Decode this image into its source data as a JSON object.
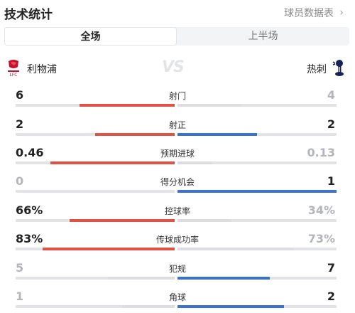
{
  "header": {
    "title": "技术统计",
    "player_stats_link": "球员数据表",
    "chevron_icon": "chevron-right-icon"
  },
  "tabs": [
    {
      "label": "全场",
      "active": true
    },
    {
      "label": "上半场",
      "active": false
    }
  ],
  "teams": {
    "home": {
      "name": "利物浦",
      "crest_icon": "liverpool-crest-icon",
      "color": "#c8102e"
    },
    "vs": "VS",
    "away": {
      "name": "热刺",
      "crest_icon": "tottenham-crest-icon",
      "color": "#132257"
    }
  },
  "colors": {
    "home_bar": "#e05243",
    "away_bar": "#3a72d1",
    "inactive_bar": "#dcdde1",
    "track": "#e2e3e6"
  },
  "stats": [
    {
      "label": "射门",
      "home": "6",
      "away": "4",
      "home_frac": 0.6,
      "away_frac": 0.4,
      "leader": "home"
    },
    {
      "label": "射正",
      "home": "2",
      "away": "2",
      "home_frac": 0.5,
      "away_frac": 0.5,
      "leader": "both"
    },
    {
      "label": "预期进球",
      "home": "0.46",
      "away": "0.13",
      "home_frac": 0.78,
      "away_frac": 0.22,
      "leader": "home"
    },
    {
      "label": "得分机会",
      "home": "0",
      "away": "1",
      "home_frac": 0.0,
      "away_frac": 1.0,
      "leader": "away"
    },
    {
      "label": "控球率",
      "home": "66%",
      "away": "34%",
      "home_frac": 0.66,
      "away_frac": 0.34,
      "leader": "home"
    },
    {
      "label": "传球成功率",
      "home": "83%",
      "away": "73%",
      "home_frac": 0.83,
      "away_frac": 0.73,
      "leader": "home"
    },
    {
      "label": "犯规",
      "home": "5",
      "away": "7",
      "home_frac": 0.42,
      "away_frac": 0.58,
      "leader": "away"
    },
    {
      "label": "角球",
      "home": "1",
      "away": "2",
      "home_frac": 0.33,
      "away_frac": 0.67,
      "leader": "away"
    }
  ]
}
